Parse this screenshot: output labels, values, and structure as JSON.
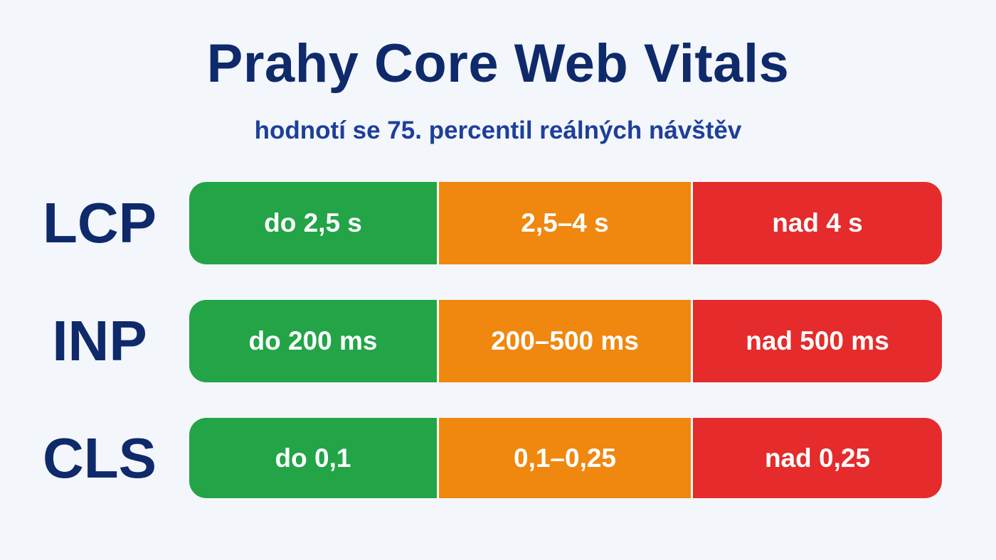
{
  "title": "Prahy Core Web Vitals",
  "subtitle": "hodnotí se 75. percentil reálných návštěv",
  "rows": [
    {
      "label": "LCP",
      "cells": [
        "do 2,5 s",
        "2,5–4 s",
        "nad 4 s"
      ]
    },
    {
      "label": "INP",
      "cells": [
        "do 200 ms",
        "200–500 ms",
        "nad 500 ms"
      ]
    },
    {
      "label": "CLS",
      "cells": [
        "do 0,1",
        "0,1–0,25",
        "nad 0,25"
      ]
    }
  ]
}
